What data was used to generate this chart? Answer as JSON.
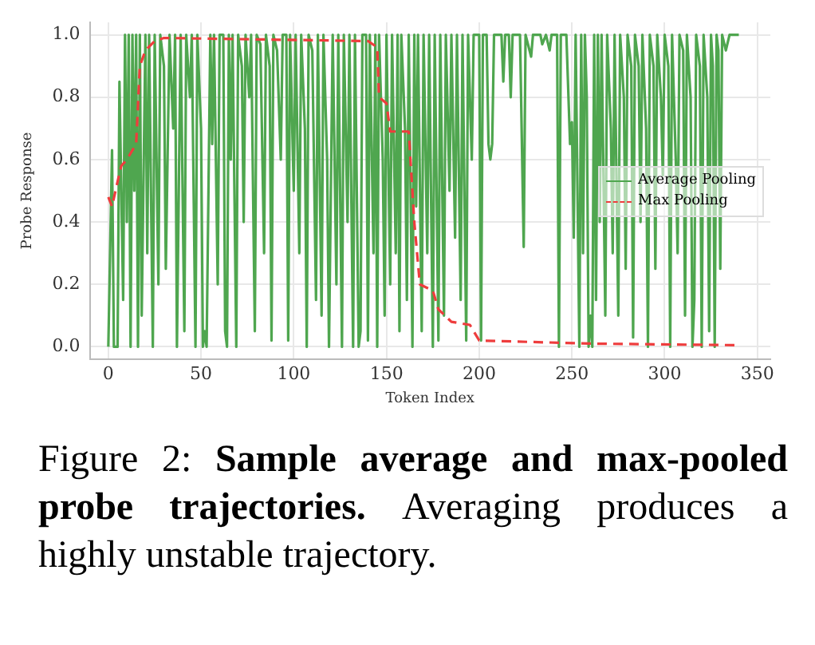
{
  "chart_data": {
    "type": "line",
    "xlabel": "Token Index",
    "ylabel": "Probe Response",
    "xlim": [
      -10,
      357
    ],
    "xticks": [
      0,
      50,
      100,
      150,
      200,
      250,
      300,
      350
    ],
    "ylim": [
      -0.04,
      1.04
    ],
    "yticks": [
      {
        "value": 0,
        "label": "0.0"
      },
      {
        "value": 0.2,
        "label": "0.2"
      },
      {
        "value": 0.4,
        "label": "0.4"
      },
      {
        "value": 0.6,
        "label": "0.6"
      },
      {
        "value": 0.8,
        "label": "0.8"
      },
      {
        "value": 1,
        "label": "1.0"
      }
    ],
    "grid": true,
    "legend": "right",
    "marker": "none",
    "annotations": [
      "Figure 2:",
      "Sample average and max-pooled probe trajectories.",
      "Averaging produces a highly unstable trajectory."
    ],
    "series": [
      {
        "name": "Average Pooling",
        "color": "#4fa64f",
        "line_style": "solid",
        "x": [
          0,
          2,
          3,
          5,
          6,
          8,
          9,
          10,
          11,
          12,
          13,
          14,
          15,
          16,
          17,
          18,
          20,
          21,
          22,
          24,
          25,
          27,
          28,
          30,
          31,
          33,
          35,
          36,
          37,
          39,
          41,
          42,
          44,
          45,
          47,
          48,
          50,
          51,
          52,
          53,
          55,
          56,
          57,
          59,
          60,
          62,
          63,
          64,
          65,
          66,
          67,
          69,
          70,
          72,
          73,
          74,
          76,
          77,
          79,
          80,
          82,
          84,
          85,
          87,
          88,
          89,
          91,
          93,
          94,
          96,
          97,
          98,
          100,
          101,
          103,
          104,
          106,
          107,
          108,
          110,
          112,
          113,
          115,
          116,
          118,
          119,
          121,
          123,
          124,
          126,
          127,
          129,
          130,
          132,
          133,
          135,
          136,
          137,
          139,
          140,
          141,
          143,
          144,
          145,
          146,
          148,
          149,
          150,
          152,
          153,
          155,
          156,
          157,
          158,
          160,
          161,
          162,
          164,
          165,
          166,
          167,
          169,
          170,
          172,
          173,
          175,
          176,
          178,
          179,
          181,
          182,
          184,
          185,
          187,
          188,
          190,
          191,
          193,
          194,
          196,
          197,
          200,
          201,
          202,
          204,
          205,
          206,
          207,
          208,
          212,
          213,
          214,
          216,
          217,
          218,
          222,
          224,
          225,
          228,
          229,
          233,
          234,
          236,
          238,
          239,
          242,
          243,
          244,
          247,
          249,
          250,
          251,
          252,
          254,
          255,
          256,
          257,
          258,
          259,
          260,
          261,
          262,
          263,
          264,
          265,
          266,
          268,
          269,
          271,
          272,
          273,
          275,
          276,
          278,
          279,
          280,
          282,
          283,
          284,
          286,
          287,
          288,
          290,
          291,
          292,
          294,
          295,
          296,
          298,
          299,
          300,
          302,
          303,
          304,
          306,
          307,
          308,
          310,
          311,
          312,
          314,
          315,
          316,
          317,
          319,
          320,
          321,
          323,
          324,
          325,
          326,
          327,
          328,
          329,
          330,
          331,
          333,
          335,
          340
        ],
        "values": [
          0,
          0.63,
          0,
          0,
          0.85,
          0.15,
          1,
          0.4,
          1,
          0,
          1,
          0.5,
          1,
          0,
          1,
          0.1,
          1,
          0.3,
          1,
          0,
          1,
          0.2,
          1,
          0.9,
          0.25,
          1,
          0.7,
          1,
          0,
          1,
          0.05,
          1,
          0.8,
          1,
          0,
          1,
          0.7,
          0,
          0.05,
          0,
          1,
          0.65,
          1,
          0.2,
          1,
          1,
          0.05,
          0,
          1,
          0.6,
          1,
          0,
          1,
          0.9,
          0.4,
          1,
          0.8,
          1,
          0.05,
          1,
          0.97,
          0.3,
          1,
          0.9,
          0.02,
          1,
          0.95,
          0.6,
          1,
          1,
          0.02,
          1,
          0.5,
          1,
          0.3,
          1,
          0.7,
          0,
          1,
          0.95,
          0.15,
          1,
          0.1,
          1,
          0.6,
          0,
          1,
          0.2,
          1,
          0,
          1,
          0.4,
          1,
          0,
          1,
          0,
          0.05,
          1,
          1,
          0.02,
          1,
          0.3,
          1,
          0,
          1,
          0.6,
          0.1,
          1,
          0.2,
          1,
          0.3,
          1,
          0.05,
          1,
          0.7,
          0.15,
          1,
          0,
          1,
          0.45,
          1,
          0.05,
          1,
          0.3,
          1,
          0,
          1,
          0.02,
          1,
          0.1,
          1,
          0.5,
          1,
          0.35,
          1,
          0.15,
          1,
          0.02,
          1,
          0.6,
          1,
          1,
          0.02,
          1,
          1,
          0.65,
          0.6,
          0.65,
          1,
          1,
          0.85,
          1,
          1,
          0.8,
          1,
          1,
          0.32,
          1,
          0.93,
          1,
          1,
          0.97,
          1,
          0.95,
          1,
          1,
          0,
          1,
          1,
          0.65,
          0.72,
          0.35,
          1,
          0,
          1,
          0.3,
          1,
          0.8,
          0,
          0.1,
          0,
          1,
          0.15,
          1,
          0.4,
          1,
          0.1,
          1,
          0.7,
          0.3,
          1,
          0.1,
          1,
          0.8,
          0.25,
          1,
          0.9,
          0.03,
          1,
          0.9,
          0.4,
          1,
          0.7,
          0,
          1,
          0.9,
          0.25,
          1,
          0.8,
          0.55,
          1,
          0.9,
          0,
          1,
          0.6,
          0.3,
          1,
          0.95,
          0.1,
          1,
          0.8,
          0,
          0.15,
          1,
          0.9,
          0,
          1,
          0.8,
          0.05,
          1,
          0.9,
          0,
          1,
          0.95,
          0.25,
          1,
          0.95,
          1,
          1
        ]
      },
      {
        "name": "Max Pooling",
        "color": "#ee3d3d",
        "line_style": "dashed",
        "x": [
          0,
          2,
          5,
          7,
          10,
          15,
          17,
          20,
          25,
          30,
          140,
          145,
          146,
          150,
          152,
          162,
          165,
          168,
          175,
          178,
          185,
          195,
          200,
          260,
          340
        ],
        "values": [
          0.48,
          0.45,
          0.53,
          0.58,
          0.6,
          0.65,
          0.9,
          0.95,
          0.98,
          0.99,
          0.98,
          0.96,
          0.8,
          0.78,
          0.69,
          0.69,
          0.4,
          0.2,
          0.18,
          0.12,
          0.08,
          0.07,
          0.02,
          0.01,
          0.005
        ]
      }
    ]
  }
}
